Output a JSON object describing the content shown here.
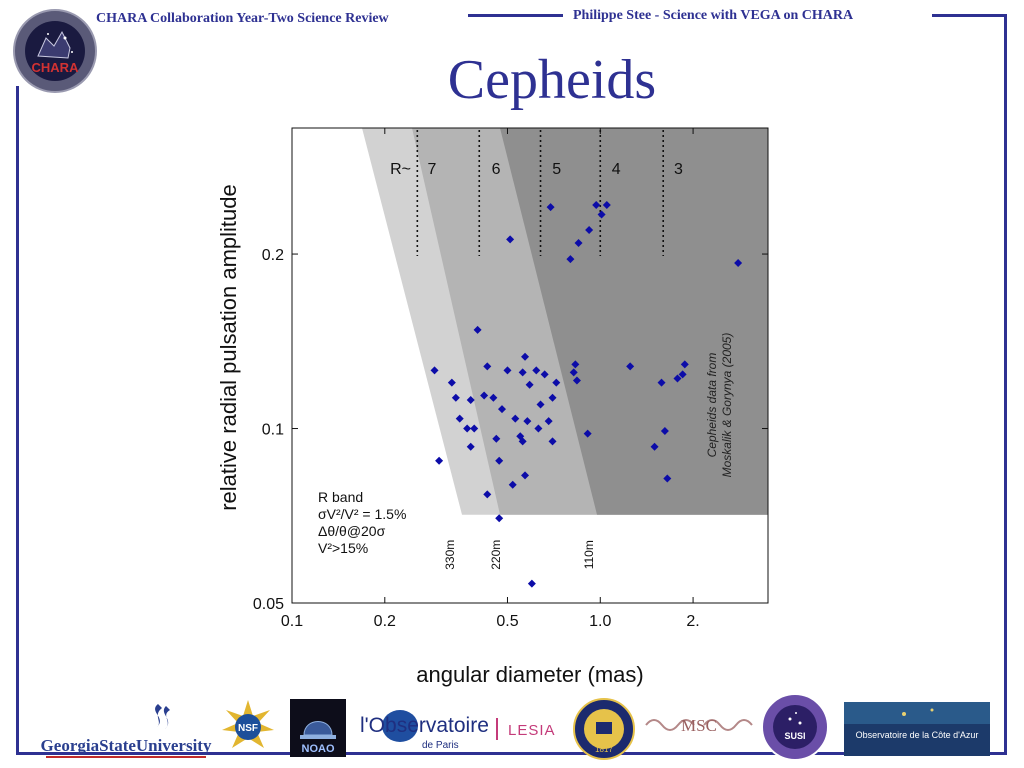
{
  "header": {
    "left": "CHARA Collaboration Year-Two Science Review",
    "right": "Philippe Stee - Science with VEGA on CHARA",
    "logo_text": "CHARA",
    "title": "Cepheids"
  },
  "colors": {
    "frame": "#2e3192",
    "marker": "#0c0ca8",
    "zone_light": "#d2d2d2",
    "zone_mid": "#b4b4b4",
    "zone_dark": "#8f8f8f"
  },
  "chart_data": {
    "type": "scatter",
    "xlabel": "angular diameter (mas)",
    "ylabel": "relative radial pulsation amplitude",
    "x_scale": "log",
    "y_scale": "log",
    "xlim": [
      0.1,
      3.5
    ],
    "ylim": [
      0.05,
      0.33
    ],
    "x_ticks": [
      {
        "value": 0.1,
        "label": "0.1"
      },
      {
        "value": 0.2,
        "label": "0.2"
      },
      {
        "value": 0.5,
        "label": "0.5"
      },
      {
        "value": 1.0,
        "label": "1.0"
      },
      {
        "value": 2.0,
        "label": "2."
      }
    ],
    "y_ticks": [
      {
        "value": 0.05,
        "label": "0.05"
      },
      {
        "value": 0.1,
        "label": "0.1"
      },
      {
        "value": 0.2,
        "label": "0.2"
      }
    ],
    "zone_labels": [
      {
        "value": 0.26,
        "label": "7"
      },
      {
        "value": 0.42,
        "label": "6"
      },
      {
        "value": 0.66,
        "label": "5"
      },
      {
        "value": 1.03,
        "label": "4"
      },
      {
        "value": 1.64,
        "label": "3"
      }
    ],
    "zone_prefix": "R~",
    "resolution_lines": [
      0.255,
      0.405,
      0.64,
      1.0,
      1.6
    ],
    "baselines": [
      {
        "value": 0.34,
        "label": "330m"
      },
      {
        "value": 0.48,
        "label": "220m"
      },
      {
        "value": 0.96,
        "label": "110m"
      }
    ],
    "amplitude_cutoff": 0.071,
    "annotation": [
      "R band",
      "σV²/V² = 1.5%",
      "Δθ/θ@20σ",
      "V²>15%"
    ],
    "source_note": [
      "Cepheids data from",
      "Moskalik & Gorynya (2005)"
    ],
    "series": [
      {
        "points": [
          [
            0.29,
            0.126
          ],
          [
            0.3,
            0.088
          ],
          [
            0.33,
            0.12
          ],
          [
            0.34,
            0.113
          ],
          [
            0.35,
            0.104
          ],
          [
            0.37,
            0.1
          ],
          [
            0.38,
            0.112
          ],
          [
            0.38,
            0.093
          ],
          [
            0.39,
            0.1
          ],
          [
            0.4,
            0.148
          ],
          [
            0.42,
            0.114
          ],
          [
            0.43,
            0.128
          ],
          [
            0.43,
            0.077
          ],
          [
            0.45,
            0.113
          ],
          [
            0.46,
            0.096
          ],
          [
            0.47,
            0.088
          ],
          [
            0.47,
            0.07
          ],
          [
            0.48,
            0.108
          ],
          [
            0.5,
            0.126
          ],
          [
            0.51,
            0.212
          ],
          [
            0.52,
            0.08
          ],
          [
            0.53,
            0.104
          ],
          [
            0.55,
            0.097
          ],
          [
            0.56,
            0.125
          ],
          [
            0.57,
            0.133
          ],
          [
            0.56,
            0.095
          ],
          [
            0.57,
            0.083
          ],
          [
            0.58,
            0.103
          ],
          [
            0.59,
            0.119
          ],
          [
            0.6,
            0.054
          ],
          [
            0.62,
            0.126
          ],
          [
            0.63,
            0.1
          ],
          [
            0.64,
            0.11
          ],
          [
            0.66,
            0.124
          ],
          [
            0.68,
            0.103
          ],
          [
            0.69,
            0.241
          ],
          [
            0.7,
            0.095
          ],
          [
            0.7,
            0.113
          ],
          [
            0.72,
            0.12
          ],
          [
            0.8,
            0.196
          ],
          [
            0.82,
            0.125
          ],
          [
            0.83,
            0.129
          ],
          [
            0.84,
            0.121
          ],
          [
            0.85,
            0.209
          ],
          [
            0.91,
            0.098
          ],
          [
            0.92,
            0.22
          ],
          [
            0.97,
            0.243
          ],
          [
            1.01,
            0.234
          ],
          [
            1.05,
            0.243
          ],
          [
            1.25,
            0.128
          ],
          [
            1.5,
            0.093
          ],
          [
            1.58,
            0.12
          ],
          [
            1.62,
            0.099
          ],
          [
            1.65,
            0.082
          ],
          [
            1.78,
            0.122
          ],
          [
            1.85,
            0.124
          ],
          [
            1.88,
            0.129
          ],
          [
            2.8,
            0.193
          ]
        ]
      }
    ]
  },
  "logos": {
    "gsu": "GeorgiaStateUniversity",
    "nsf": "NSF",
    "noao": "NOAO",
    "obs_main": "l'Observatoire",
    "obs_sub": "de Paris",
    "lesia": "LESIA",
    "michigan": "1817",
    "msc": "MSC",
    "susi": "SUSI",
    "oca": "Observatoire de la Côte d'Azur"
  }
}
